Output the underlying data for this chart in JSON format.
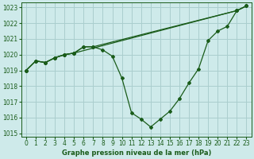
{
  "title": "Graphe pression niveau de la mer (hPa)",
  "bg_color": "#ceeaea",
  "grid_color": "#aacece",
  "line_color": "#1a5c1a",
  "xlim": [
    -0.5,
    23.5
  ],
  "ylim": [
    1014.8,
    1023.3
  ],
  "xtick_labels": [
    "0",
    "1",
    "2",
    "3",
    "4",
    "5",
    "6",
    "7",
    "8",
    "9",
    "10",
    "11",
    "12",
    "13",
    "14",
    "15",
    "16",
    "17",
    "18",
    "19",
    "20",
    "21",
    "22",
    "23"
  ],
  "xtick_pos": [
    0,
    1,
    2,
    3,
    4,
    5,
    6,
    7,
    8,
    9,
    10,
    11,
    12,
    13,
    14,
    15,
    16,
    17,
    18,
    19,
    20,
    21,
    22,
    23
  ],
  "yticks": [
    1015,
    1016,
    1017,
    1018,
    1019,
    1020,
    1021,
    1022,
    1023
  ],
  "series1_x": [
    0,
    1,
    2,
    3,
    4,
    5,
    6,
    7,
    8,
    9,
    10,
    11,
    12,
    13,
    14,
    15,
    16,
    17,
    18,
    19,
    20,
    21,
    22,
    23
  ],
  "series1_y": [
    1019.0,
    1019.6,
    1019.5,
    1019.8,
    1020.0,
    1020.1,
    1020.5,
    1020.5,
    1020.3,
    1019.9,
    1018.5,
    1016.3,
    1015.9,
    1015.4,
    1015.9,
    1016.4,
    1017.2,
    1018.2,
    1019.1,
    1020.9,
    1021.5,
    1021.8,
    1022.8,
    1023.1
  ],
  "series2_x": [
    0,
    1,
    2,
    3,
    4,
    5,
    6,
    7,
    22,
    23
  ],
  "series2_y": [
    1019.0,
    1019.6,
    1019.5,
    1019.8,
    1020.0,
    1020.1,
    1020.5,
    1020.5,
    1022.8,
    1023.1
  ],
  "series3_x": [
    0,
    1,
    2,
    3,
    4,
    5,
    22,
    23
  ],
  "series3_y": [
    1019.0,
    1019.6,
    1019.5,
    1019.8,
    1020.0,
    1020.1,
    1022.8,
    1023.1
  ],
  "marker_size": 2.0,
  "line_width": 0.9,
  "tick_fontsize": 5.5,
  "label_fontsize": 6.0
}
